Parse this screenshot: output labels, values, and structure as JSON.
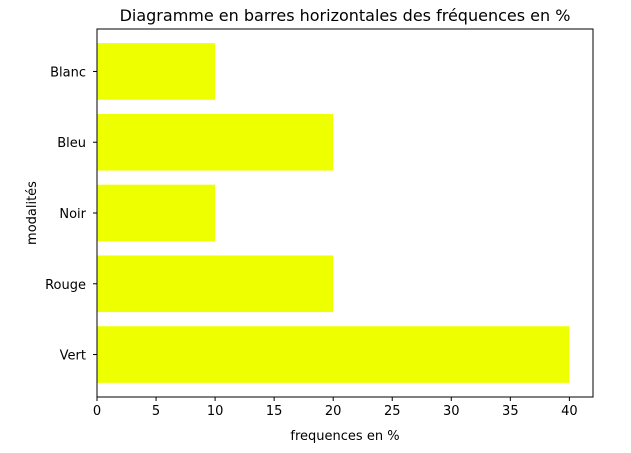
{
  "chart_data": {
    "type": "bar",
    "orientation": "horizontal",
    "title": "Diagramme en barres horizontales des fréquences en %",
    "xlabel": "frequences en %",
    "ylabel": "modalités",
    "categories": [
      "Vert",
      "Rouge",
      "Noir",
      "Bleu",
      "Blanc"
    ],
    "values": [
      40,
      20,
      10,
      20,
      10
    ],
    "xlim": [
      0,
      42
    ],
    "xticks": [
      "0",
      "5",
      "10",
      "15",
      "20",
      "25",
      "30",
      "35",
      "40"
    ],
    "bar_color": "#eeff00",
    "grid": false,
    "legend": "none"
  }
}
